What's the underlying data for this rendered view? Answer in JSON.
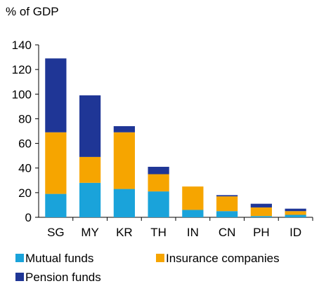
{
  "chart_data": {
    "type": "bar",
    "stacked": true,
    "title": "% of GDP",
    "categories": [
      "SG",
      "MY",
      "KR",
      "TH",
      "IN",
      "CN",
      "PH",
      "ID"
    ],
    "series": [
      {
        "name": "Mutual funds",
        "color": "#1aa3da",
        "values": [
          19,
          28,
          23,
          21,
          6,
          5,
          1,
          2
        ]
      },
      {
        "name": "Insurance companies",
        "color": "#f6a500",
        "values": [
          50,
          21,
          46,
          14,
          19,
          12,
          7,
          3
        ]
      },
      {
        "name": "Pension funds",
        "color": "#1f3696",
        "values": [
          60,
          50,
          5,
          6,
          0,
          1,
          3,
          2
        ]
      }
    ],
    "ylim": [
      0,
      140
    ],
    "yticks": [
      "0",
      "20",
      "40",
      "60",
      "80",
      "100",
      "120",
      "140"
    ],
    "grid": false,
    "legend": "bottom"
  }
}
